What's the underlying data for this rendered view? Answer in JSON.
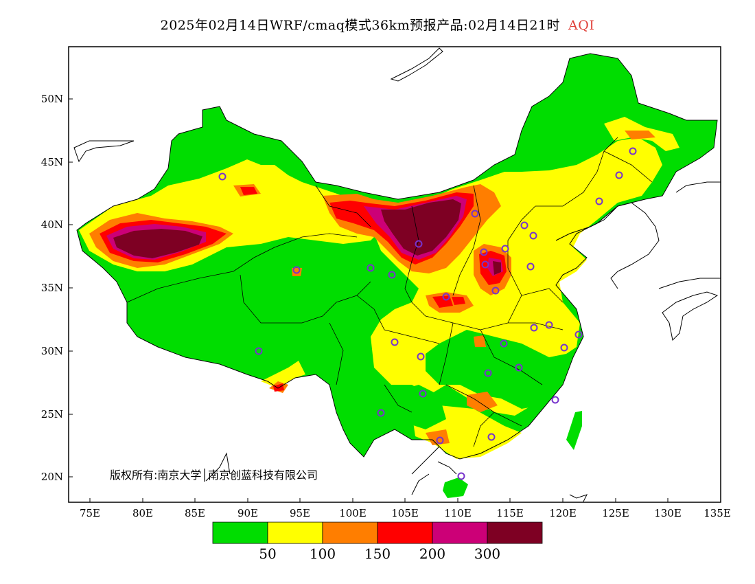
{
  "title": {
    "main": "2025年02月14日WRF/cmaq模式36km预报产品:02月14日21时",
    "variable": "AQI"
  },
  "map": {
    "lon_range": [
      73,
      135
    ],
    "lat_range": [
      18,
      54
    ],
    "lon_ticks": [
      "75E",
      "80E",
      "85E",
      "90E",
      "95E",
      "100E",
      "105E",
      "110E",
      "115E",
      "120E",
      "125E",
      "130E",
      "135E"
    ],
    "lat_ticks": [
      "50N",
      "45N",
      "40N",
      "35N",
      "30N",
      "25N",
      "20N"
    ],
    "copyright": "版权所有:南京大学│南京创蓝科技有限公司"
  },
  "legend": {
    "colors": [
      "#00dd00",
      "#ffff00",
      "#ff7e00",
      "#ff0000",
      "#cc0077",
      "#7e0023"
    ],
    "labels": [
      "50",
      "100",
      "150",
      "200",
      "300"
    ]
  },
  "colors": {
    "land_bg": "#ffffff",
    "border": "#000000",
    "station_marker": "#7733cc"
  }
}
